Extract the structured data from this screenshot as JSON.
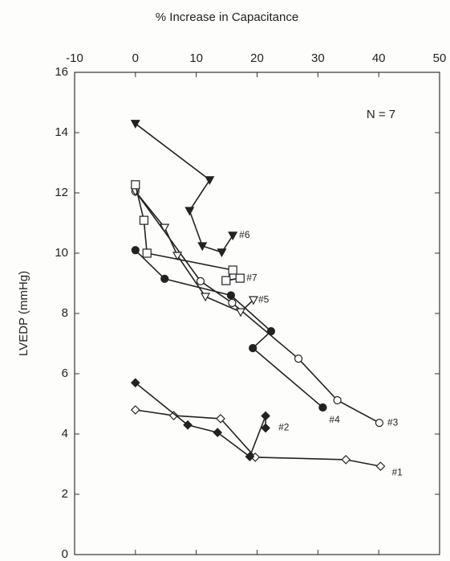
{
  "chart_data": {
    "type": "line",
    "x_label": "% Increase in Capacitance",
    "y_label": "LVEDP (mmHg)",
    "annotation": "N = 7",
    "xlim": [
      -10,
      50
    ],
    "xticks": [
      -10,
      0,
      10,
      20,
      30,
      40,
      50
    ],
    "ylim": [
      0,
      16
    ],
    "yticks": [
      0,
      2,
      4,
      6,
      8,
      10,
      12,
      14,
      16
    ],
    "series": [
      {
        "name": "#1",
        "color": "#222",
        "marker": "diamond-open",
        "x": [
          0,
          6.3,
          14.0,
          19.7,
          34.6,
          40.3
        ],
        "values": [
          4.8,
          4.61,
          4.51,
          3.23,
          3.15,
          2.93
        ]
      },
      {
        "name": "#2",
        "color": "#222",
        "marker": "diamond-filled",
        "x": [
          0,
          8.6,
          13.5,
          18.8,
          21.4,
          21.4
        ],
        "values": [
          5.7,
          4.3,
          4.05,
          3.25,
          4.6,
          4.2
        ]
      },
      {
        "name": "#3",
        "color": "#222",
        "marker": "circle-open",
        "x": [
          0,
          10.7,
          15.9,
          26.8,
          33.2,
          40.1
        ],
        "values": [
          12.05,
          9.07,
          8.35,
          6.5,
          5.12,
          4.37
        ]
      },
      {
        "name": "#4",
        "color": "#222",
        "marker": "circle-filled",
        "x": [
          0,
          4.8,
          15.7,
          22.3,
          19.3,
          30.8
        ],
        "values": [
          10.1,
          9.15,
          8.6,
          7.41,
          6.85,
          4.88
        ]
      },
      {
        "name": "#5",
        "color": "#222",
        "marker": "triangle-open",
        "x": [
          0,
          4.8,
          6.9,
          11.5,
          17.3,
          19.4
        ],
        "values": [
          12.05,
          10.85,
          9.92,
          8.56,
          8.05,
          8.45
        ]
      },
      {
        "name": "#6",
        "color": "#222",
        "marker": "triangle-filled",
        "x": [
          0,
          12.2,
          8.9,
          11.0,
          14.2,
          16.0
        ],
        "values": [
          14.3,
          12.43,
          11.41,
          10.24,
          10.03,
          10.59
        ]
      },
      {
        "name": "#7",
        "color": "#222",
        "marker": "square-open",
        "x": [
          0,
          1.4,
          1.9,
          16.0,
          14.9,
          17.2
        ],
        "values": [
          12.27,
          11.09,
          10.0,
          9.44,
          9.09,
          9.17
        ]
      }
    ]
  }
}
